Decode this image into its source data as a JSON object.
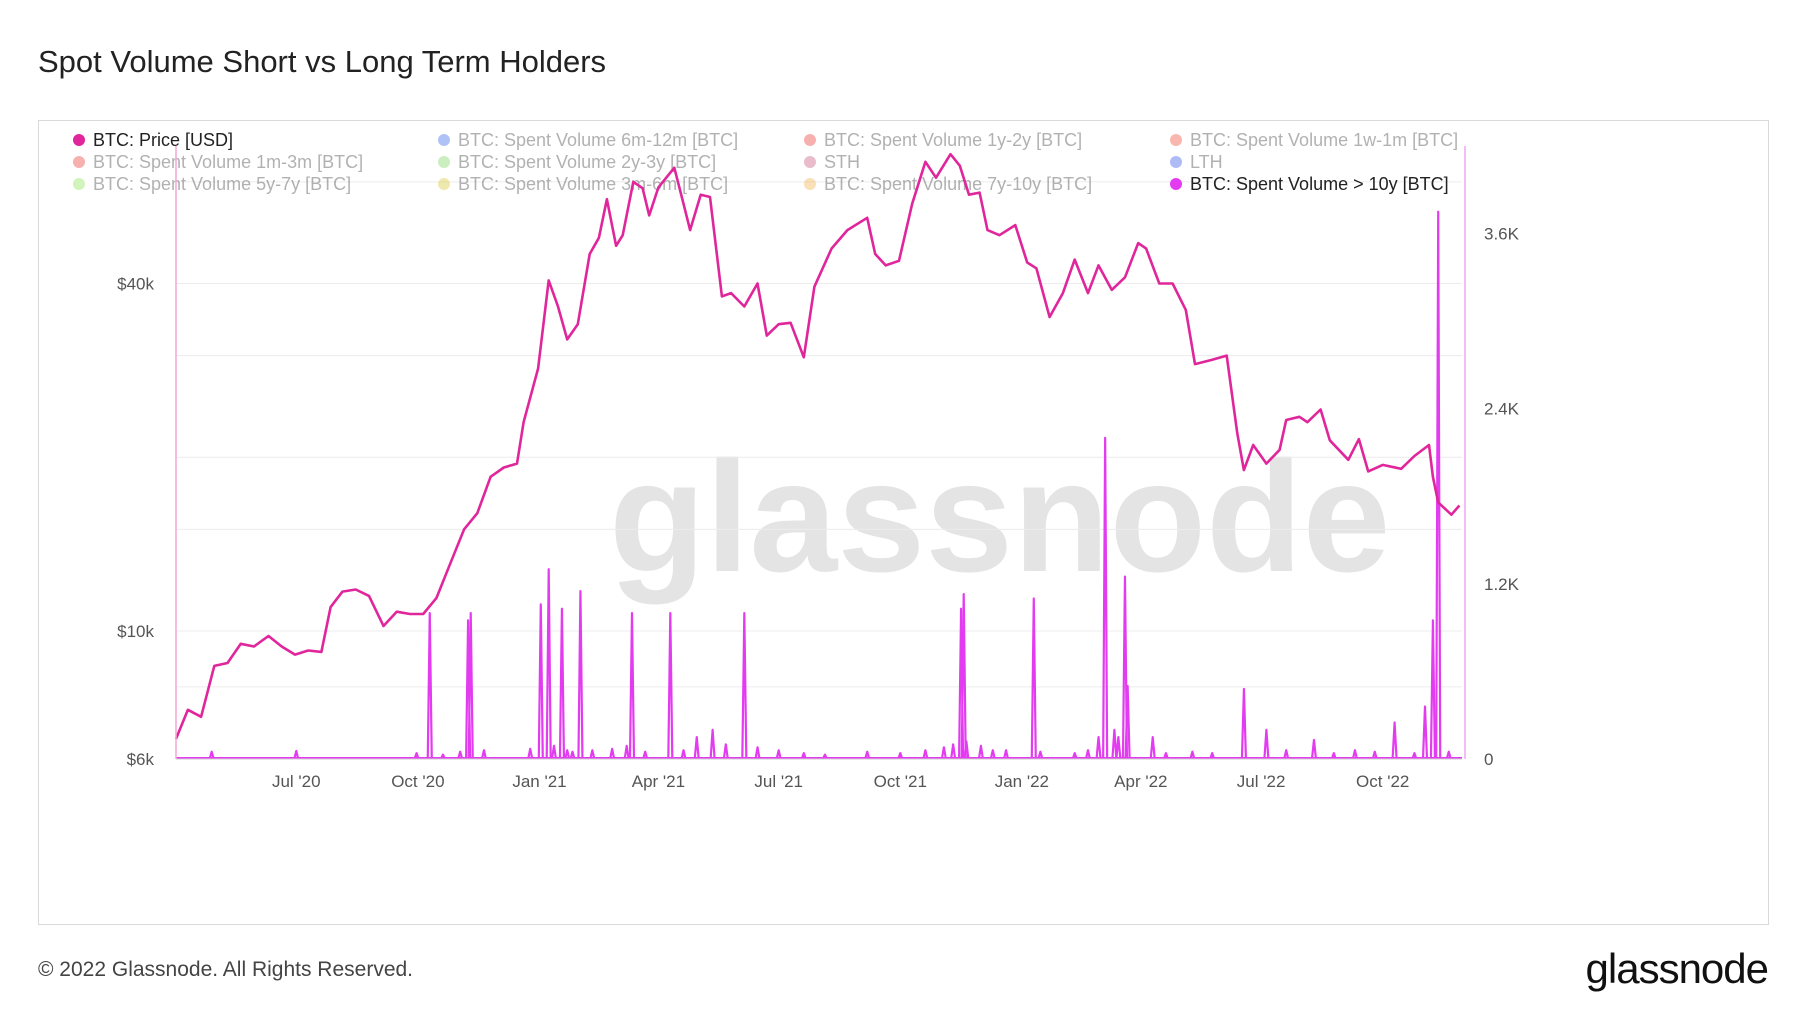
{
  "title": "Spot Volume Short vs Long Term Holders",
  "footer": "© 2022 Glassnode. All Rights Reserved.",
  "logo_text": "glassnode",
  "watermark": "glassnode",
  "legend": [
    {
      "label": "BTC: Price [USD]",
      "color": "#e0269b",
      "active": true
    },
    {
      "label": "BTC: Spent Volume 6m-12m [BTC]",
      "color": "#1a53e8",
      "active": false
    },
    {
      "label": "BTC: Spent Volume 1y-2y [BTC]",
      "color": "#e8201a",
      "active": false
    },
    {
      "label": "BTC: Spent Volume 1w-1m [BTC]",
      "color": "#f0301a",
      "active": false
    },
    {
      "label": "BTC: Spent Volume 1m-3m [BTC]",
      "color": "#e8201a",
      "active": false
    },
    {
      "label": "BTC: Spent Volume 2y-3y [BTC]",
      "color": "#6ccf4a",
      "active": false
    },
    {
      "label": "STH",
      "color": "#c2426f",
      "active": false
    },
    {
      "label": "LTH",
      "color": "#1a3fe8",
      "active": false
    },
    {
      "label": "BTC: Spent Volume 5y-7y [BTC]",
      "color": "#7ae03a",
      "active": false
    },
    {
      "label": "BTC: Spent Volume 3m-6m [BTC]",
      "color": "#d4c21a",
      "active": false
    },
    {
      "label": "BTC: Spent Volume 7y-10y [BTC]",
      "color": "#f0a83a",
      "active": false
    },
    {
      "label": "BTC: Spent Volume > 10y [BTC]",
      "color": "#e33cf0",
      "active": true
    }
  ],
  "chart_data": {
    "type": "line",
    "x_ticks": [
      "Jul '20",
      "Oct '20",
      "Jan '21",
      "Apr '21",
      "Jul '21",
      "Oct '21",
      "Jan '22",
      "Apr '22",
      "Jul '22",
      "Oct '22"
    ],
    "left_axis": {
      "scale": "log",
      "ticks": [
        "$6k",
        "$10k",
        "$40k"
      ],
      "tick_values": [
        6000,
        10000,
        40000
      ],
      "range": [
        6000,
        66000
      ]
    },
    "right_axis": {
      "scale": "linear",
      "ticks": [
        "0",
        "1.2K",
        "2.4K",
        "3.6K"
      ],
      "tick_values": [
        0,
        1200,
        2400,
        3600
      ],
      "range": [
        0,
        4200
      ]
    },
    "x_range": [
      "2020-04-01",
      "2022-11-30"
    ],
    "series": [
      {
        "name": "BTC: Price [USD]",
        "axis": "left",
        "color": "#e0269b",
        "points": [
          [
            "2020-04-01",
            6500
          ],
          [
            "2020-04-10",
            7300
          ],
          [
            "2020-04-20",
            7100
          ],
          [
            "2020-04-30",
            8700
          ],
          [
            "2020-05-10",
            8800
          ],
          [
            "2020-05-20",
            9500
          ],
          [
            "2020-05-30",
            9400
          ],
          [
            "2020-06-10",
            9800
          ],
          [
            "2020-06-20",
            9400
          ],
          [
            "2020-06-30",
            9100
          ],
          [
            "2020-07-10",
            9250
          ],
          [
            "2020-07-20",
            9200
          ],
          [
            "2020-07-27",
            11000
          ],
          [
            "2020-08-05",
            11700
          ],
          [
            "2020-08-15",
            11800
          ],
          [
            "2020-08-25",
            11500
          ],
          [
            "2020-09-05",
            10200
          ],
          [
            "2020-09-15",
            10800
          ],
          [
            "2020-09-25",
            10700
          ],
          [
            "2020-10-05",
            10700
          ],
          [
            "2020-10-15",
            11400
          ],
          [
            "2020-10-25",
            13000
          ],
          [
            "2020-11-05",
            15000
          ],
          [
            "2020-11-15",
            16000
          ],
          [
            "2020-11-25",
            18500
          ],
          [
            "2020-12-05",
            19200
          ],
          [
            "2020-12-15",
            19500
          ],
          [
            "2020-12-20",
            23000
          ],
          [
            "2020-12-31",
            28500
          ],
          [
            "2021-01-08",
            40500
          ],
          [
            "2021-01-15",
            36500
          ],
          [
            "2021-01-22",
            32000
          ],
          [
            "2021-01-30",
            34000
          ],
          [
            "2021-02-08",
            45000
          ],
          [
            "2021-02-15",
            48000
          ],
          [
            "2021-02-21",
            56000
          ],
          [
            "2021-02-28",
            46500
          ],
          [
            "2021-03-05",
            48500
          ],
          [
            "2021-03-13",
            60000
          ],
          [
            "2021-03-20",
            58500
          ],
          [
            "2021-03-25",
            52500
          ],
          [
            "2021-04-01",
            58700
          ],
          [
            "2021-04-13",
            63500
          ],
          [
            "2021-04-20",
            55000
          ],
          [
            "2021-04-25",
            49500
          ],
          [
            "2021-05-03",
            57000
          ],
          [
            "2021-05-10",
            56500
          ],
          [
            "2021-05-19",
            38000
          ],
          [
            "2021-05-26",
            38500
          ],
          [
            "2021-06-05",
            36500
          ],
          [
            "2021-06-15",
            40000
          ],
          [
            "2021-06-22",
            32500
          ],
          [
            "2021-07-01",
            34000
          ],
          [
            "2021-07-10",
            34200
          ],
          [
            "2021-07-20",
            29800
          ],
          [
            "2021-07-28",
            39500
          ],
          [
            "2021-08-10",
            46000
          ],
          [
            "2021-08-22",
            49500
          ],
          [
            "2021-09-06",
            52000
          ],
          [
            "2021-09-12",
            45000
          ],
          [
            "2021-09-20",
            43000
          ],
          [
            "2021-09-30",
            43800
          ],
          [
            "2021-10-10",
            55000
          ],
          [
            "2021-10-20",
            65000
          ],
          [
            "2021-10-28",
            61000
          ],
          [
            "2021-11-08",
            67000
          ],
          [
            "2021-11-15",
            64000
          ],
          [
            "2021-11-22",
            57000
          ],
          [
            "2021-11-30",
            57500
          ],
          [
            "2021-12-06",
            49500
          ],
          [
            "2021-12-15",
            48500
          ],
          [
            "2021-12-27",
            50500
          ],
          [
            "2022-01-05",
            43500
          ],
          [
            "2022-01-12",
            42500
          ],
          [
            "2022-01-22",
            35000
          ],
          [
            "2022-02-01",
            38500
          ],
          [
            "2022-02-10",
            44000
          ],
          [
            "2022-02-20",
            38500
          ],
          [
            "2022-02-28",
            43000
          ],
          [
            "2022-03-10",
            39000
          ],
          [
            "2022-03-20",
            41000
          ],
          [
            "2022-03-30",
            47000
          ],
          [
            "2022-04-05",
            46000
          ],
          [
            "2022-04-15",
            40000
          ],
          [
            "2022-04-25",
            40000
          ],
          [
            "2022-05-05",
            36000
          ],
          [
            "2022-05-12",
            29000
          ],
          [
            "2022-05-25",
            29500
          ],
          [
            "2022-06-05",
            30000
          ],
          [
            "2022-06-13",
            22000
          ],
          [
            "2022-06-18",
            19000
          ],
          [
            "2022-06-25",
            21000
          ],
          [
            "2022-07-05",
            19500
          ],
          [
            "2022-07-15",
            20600
          ],
          [
            "2022-07-20",
            23200
          ],
          [
            "2022-07-30",
            23500
          ],
          [
            "2022-08-05",
            23000
          ],
          [
            "2022-08-15",
            24200
          ],
          [
            "2022-08-22",
            21400
          ],
          [
            "2022-09-05",
            19800
          ],
          [
            "2022-09-13",
            21500
          ],
          [
            "2022-09-20",
            18900
          ],
          [
            "2022-10-01",
            19400
          ],
          [
            "2022-10-15",
            19100
          ],
          [
            "2022-10-25",
            20100
          ],
          [
            "2022-11-05",
            21000
          ],
          [
            "2022-11-08",
            18500
          ],
          [
            "2022-11-12",
            16700
          ],
          [
            "2022-11-22",
            15900
          ],
          [
            "2022-11-28",
            16500
          ]
        ]
      },
      {
        "name": "BTC: Spent Volume > 10y [BTC]",
        "axis": "right",
        "color": "#e33cf0",
        "spikes": [
          [
            "2020-04-28",
            50
          ],
          [
            "2020-07-01",
            55
          ],
          [
            "2020-09-30",
            40
          ],
          [
            "2020-10-10",
            1000
          ],
          [
            "2020-10-20",
            30
          ],
          [
            "2020-11-02",
            50
          ],
          [
            "2020-11-08",
            950
          ],
          [
            "2020-11-10",
            1000
          ],
          [
            "2020-11-20",
            60
          ],
          [
            "2020-12-25",
            70
          ],
          [
            "2021-01-02",
            1060
          ],
          [
            "2021-01-08",
            1300
          ],
          [
            "2021-01-12",
            90
          ],
          [
            "2021-01-18",
            1030
          ],
          [
            "2021-01-22",
            60
          ],
          [
            "2021-01-26",
            50
          ],
          [
            "2021-02-01",
            1150
          ],
          [
            "2021-02-10",
            60
          ],
          [
            "2021-02-25",
            70
          ],
          [
            "2021-03-08",
            90
          ],
          [
            "2021-03-12",
            1000
          ],
          [
            "2021-03-22",
            50
          ],
          [
            "2021-04-10",
            1000
          ],
          [
            "2021-04-20",
            60
          ],
          [
            "2021-04-30",
            150
          ],
          [
            "2021-05-12",
            200
          ],
          [
            "2021-05-22",
            100
          ],
          [
            "2021-06-05",
            1000
          ],
          [
            "2021-06-15",
            80
          ],
          [
            "2021-07-01",
            60
          ],
          [
            "2021-07-20",
            40
          ],
          [
            "2021-08-05",
            30
          ],
          [
            "2021-09-06",
            50
          ],
          [
            "2021-10-01",
            40
          ],
          [
            "2021-10-20",
            60
          ],
          [
            "2021-11-03",
            80
          ],
          [
            "2021-11-10",
            100
          ],
          [
            "2021-11-16",
            1030
          ],
          [
            "2021-11-18",
            1130
          ],
          [
            "2021-11-20",
            120
          ],
          [
            "2021-12-01",
            90
          ],
          [
            "2021-12-10",
            60
          ],
          [
            "2021-12-20",
            60
          ],
          [
            "2022-01-10",
            1100
          ],
          [
            "2022-01-15",
            50
          ],
          [
            "2022-02-10",
            40
          ],
          [
            "2022-02-20",
            60
          ],
          [
            "2022-02-28",
            150
          ],
          [
            "2022-03-05",
            2200
          ],
          [
            "2022-03-12",
            200
          ],
          [
            "2022-03-15",
            150
          ],
          [
            "2022-03-20",
            1250
          ],
          [
            "2022-03-22",
            500
          ],
          [
            "2022-04-10",
            150
          ],
          [
            "2022-04-20",
            40
          ],
          [
            "2022-05-10",
            50
          ],
          [
            "2022-05-25",
            40
          ],
          [
            "2022-06-18",
            480
          ],
          [
            "2022-07-05",
            200
          ],
          [
            "2022-07-20",
            60
          ],
          [
            "2022-08-10",
            130
          ],
          [
            "2022-08-25",
            40
          ],
          [
            "2022-09-10",
            60
          ],
          [
            "2022-09-25",
            50
          ],
          [
            "2022-10-10",
            250
          ],
          [
            "2022-10-25",
            40
          ],
          [
            "2022-11-02",
            360
          ],
          [
            "2022-11-08",
            950
          ],
          [
            "2022-11-12",
            3750
          ],
          [
            "2022-11-20",
            50
          ]
        ]
      }
    ]
  }
}
